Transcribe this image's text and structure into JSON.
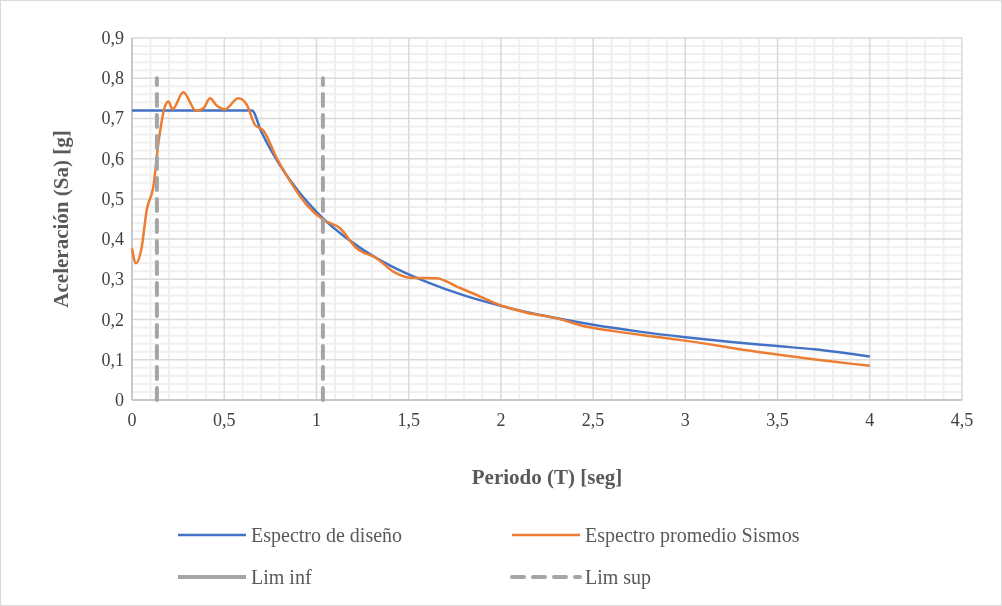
{
  "chart_data": {
    "type": "line",
    "xlabel": "Periodo (T) [seg]",
    "ylabel": "Aceleración (Sa) [g]",
    "xlim": [
      0,
      4.5
    ],
    "ylim": [
      0,
      0.9
    ],
    "xticks": [
      0,
      {
        "value": 0.5,
        "label": "0,5"
      },
      1,
      {
        "value": 1.5,
        "label": "1,5"
      },
      2,
      {
        "value": 2.5,
        "label": "2,5"
      },
      3,
      {
        "value": 3.5,
        "label": "3,5"
      },
      4,
      {
        "value": 4.5,
        "label": "4,5"
      }
    ],
    "yticks": [
      0,
      {
        "value": 0.1,
        "label": "0,1"
      },
      {
        "value": 0.2,
        "label": "0,2"
      },
      {
        "value": 0.3,
        "label": "0,3"
      },
      {
        "value": 0.4,
        "label": "0,4"
      },
      {
        "value": 0.5,
        "label": "0,5"
      },
      {
        "value": 0.6,
        "label": "0,6"
      },
      {
        "value": 0.7,
        "label": "0,7"
      },
      {
        "value": 0.8,
        "label": "0,8"
      },
      {
        "value": 0.9,
        "label": "0,9"
      }
    ],
    "grid": true,
    "legend": "bottom",
    "series": [
      {
        "name": "Espectro de diseño",
        "color": "#4472c4",
        "line_style": "solid",
        "x": [
          0,
          0.65,
          0.7,
          0.8,
          0.9,
          1,
          1.2,
          1.4,
          1.6,
          1.8,
          2,
          2.25,
          2.5,
          2.75,
          3,
          3.25,
          3.5,
          3.7,
          4
        ],
        "values": [
          0.72,
          0.72,
          0.668,
          0.585,
          0.52,
          0.468,
          0.39,
          0.334,
          0.293,
          0.26,
          0.234,
          0.208,
          0.187,
          0.17,
          0.156,
          0.144,
          0.134,
          0.126,
          0.108
        ]
      },
      {
        "name": "Espectro promedio Sismos",
        "color": "#ed7d31",
        "line_style": "solid",
        "x": [
          0,
          0.022,
          0.053,
          0.08,
          0.116,
          0.143,
          0.179,
          0.197,
          0.22,
          0.278,
          0.347,
          0.387,
          0.423,
          0.459,
          0.504,
          0.577,
          0.622,
          0.667,
          0.712,
          0.785,
          0.875,
          0.947,
          1.037,
          1.128,
          1.218,
          1.327,
          1.417,
          1.508,
          1.652,
          1.761,
          1.869,
          1.978,
          2.14,
          2.303,
          2.466,
          2.628,
          2.863,
          3.008,
          3.388,
          4
        ],
        "values": [
          0.377,
          0.34,
          0.381,
          0.473,
          0.531,
          0.638,
          0.73,
          0.742,
          0.723,
          0.765,
          0.719,
          0.725,
          0.75,
          0.732,
          0.723,
          0.75,
          0.734,
          0.684,
          0.67,
          0.601,
          0.531,
          0.485,
          0.448,
          0.427,
          0.377,
          0.352,
          0.319,
          0.304,
          0.303,
          0.282,
          0.261,
          0.239,
          0.217,
          0.203,
          0.182,
          0.17,
          0.156,
          0.147,
          0.12,
          0.085
        ]
      },
      {
        "name": "Lim inf",
        "color": "#a5a5a5",
        "line_style": "solid"
      },
      {
        "name": "Lim sup",
        "color": "#a5a5a5",
        "line_style": "dashed",
        "x": [
          0.135,
          0.135,
          0.6,
          1.035,
          1.035
        ],
        "values": [
          0,
          0.8,
          null,
          0,
          0.8
        ]
      }
    ]
  }
}
